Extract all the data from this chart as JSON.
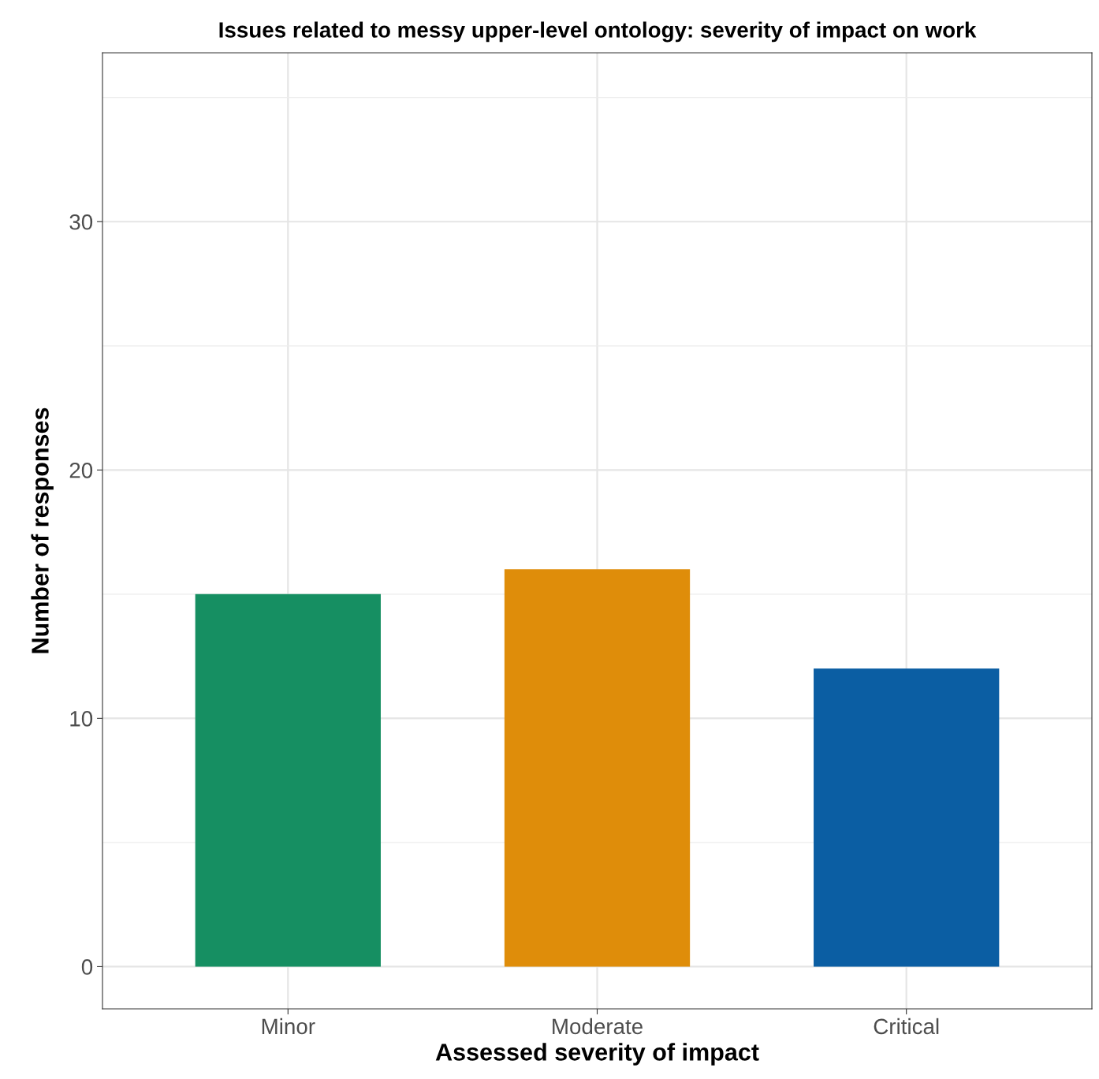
{
  "chart_data": {
    "type": "bar",
    "title": "Issues related to messy upper-level ontology: severity of impact on work",
    "xlabel": "Assessed severity of impact",
    "ylabel": "Number of responses",
    "categories": [
      "Minor",
      "Moderate",
      "Critical"
    ],
    "values": [
      15,
      16,
      12
    ],
    "colors": [
      "#168f62",
      "#df8d0a",
      "#0b5ea3"
    ],
    "ylim": [
      -1.7,
      36.8
    ],
    "yticks": [
      0,
      10,
      20,
      30
    ],
    "grid": true,
    "legend": false
  }
}
